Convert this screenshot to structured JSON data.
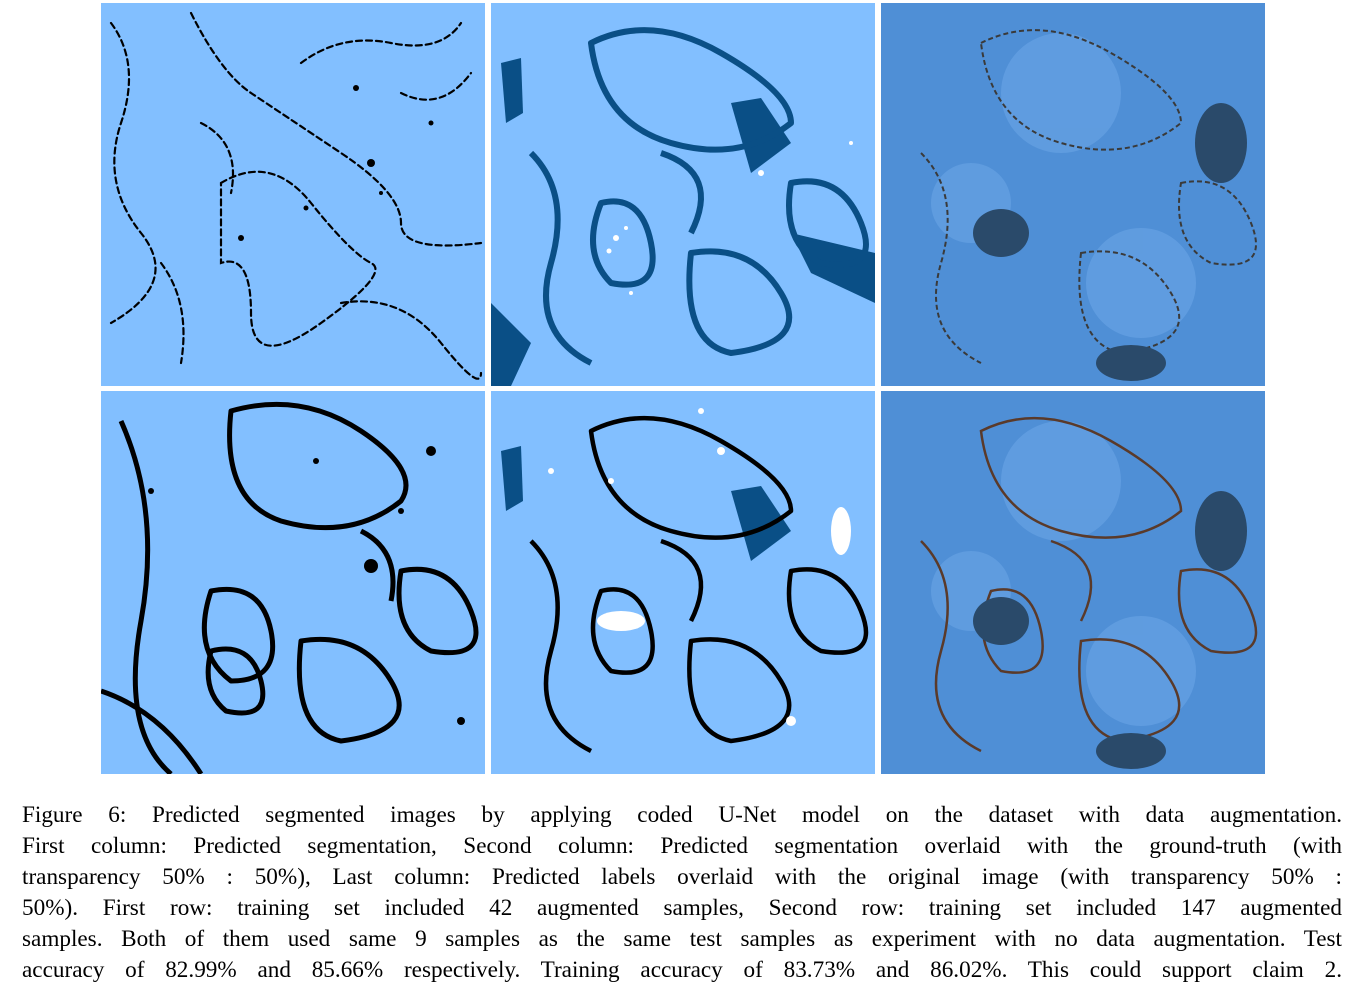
{
  "figure": {
    "panels": [
      {
        "row": 1,
        "column": 1,
        "kind": "predicted-segmentation"
      },
      {
        "row": 1,
        "column": 2,
        "kind": "prediction-overlaid-ground-truth"
      },
      {
        "row": 1,
        "column": 3,
        "kind": "labels-overlaid-original"
      },
      {
        "row": 2,
        "column": 1,
        "kind": "predicted-segmentation"
      },
      {
        "row": 2,
        "column": 2,
        "kind": "prediction-overlaid-ground-truth"
      },
      {
        "row": 2,
        "column": 3,
        "kind": "labels-overlaid-original"
      }
    ],
    "colors": {
      "segmentation_background": "#82bfff",
      "membrane": "#000000",
      "ground_truth_overlay": "#0a4f86",
      "original_overlay": "#4f8fd6",
      "overlay_membrane": "#5a3a2a"
    }
  },
  "caption": {
    "lines": [
      "Figure 6: Predicted segmented images by applying coded U-Net model on the dataset with data augmentation.",
      "First column: Predicted segmentation, Second column: Predicted segmentation overlaid with the ground-truth (with",
      "transparency 50% : 50%), Last column: Predicted labels overlaid with the original image (with transparency 50% :",
      "50%).  First row: training set included 42 augmented samples, Second row: training set included 147 augmented",
      "samples. Both of them used same 9 samples as the same test samples as experiment with no data augmentation. Test",
      "accuracy of 82.99% and 85.66% respectively. Training accuracy of 83.73% and 86.02%. This could support claim 2."
    ]
  }
}
